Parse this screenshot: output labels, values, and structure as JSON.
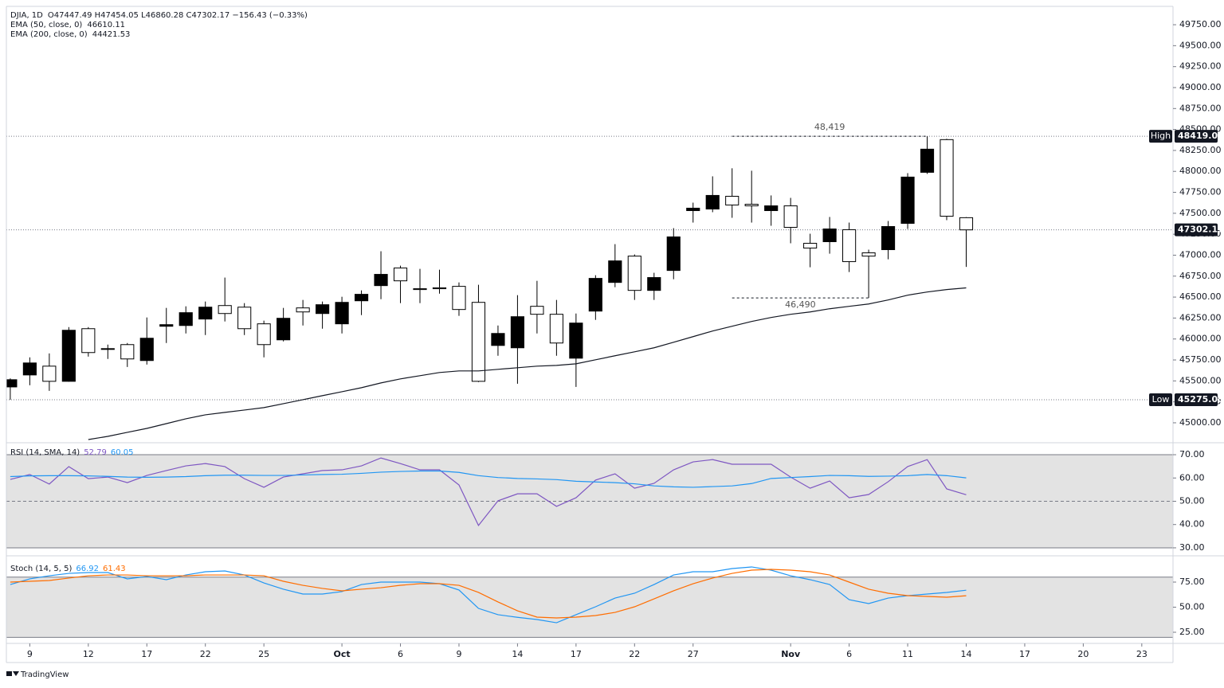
{
  "chart_data": [
    {
      "type": "candlestick",
      "title": "DJIA, 1D",
      "subtitle": "O47447.49  H47454.05  L46860.28  C47302.17  −156.43 (−0.33%)",
      "up_color": "#000000",
      "down_color": "#ffffff",
      "open": [
        45428,
        45571,
        45676,
        45495,
        46123,
        45876,
        45933,
        45743,
        46152,
        46161,
        46238,
        46399,
        46380,
        46181,
        45990,
        46371,
        46304,
        46181,
        46456,
        46637,
        46847,
        46600,
        46611,
        46628,
        46437,
        45923,
        45895,
        46390,
        46295,
        45771,
        46333,
        46675,
        46989,
        46580,
        46818,
        47532,
        47551,
        47703,
        47608,
        47532,
        47589,
        47142,
        47161,
        47304,
        47028,
        47066,
        47380,
        47989,
        48379,
        47447.49
      ],
      "high": [
        45530,
        45781,
        45828,
        46142,
        46142,
        45933,
        45952,
        46257,
        46371,
        46390,
        46447,
        46733,
        46428,
        46219,
        46371,
        46466,
        46447,
        46504,
        46580,
        47047,
        46875,
        46837,
        46827,
        46675,
        46647,
        46161,
        46523,
        46694,
        46466,
        46304,
        46761,
        47132,
        47009,
        46790,
        47323,
        47627,
        47941,
        48037,
        48008,
        47713,
        47684,
        47256,
        47456,
        47389,
        47066,
        47408,
        47979,
        48419.01,
        48389,
        47454.05
      ],
      "low": [
        45275.05,
        45448,
        45381,
        45490,
        45790,
        45762,
        45666,
        45695,
        45952,
        46066,
        46047,
        46209,
        46047,
        45781,
        45971,
        46161,
        46123,
        46066,
        46285,
        46475,
        46428,
        46428,
        46541,
        46276,
        45486,
        45800,
        45466,
        46066,
        45800,
        45428,
        46228,
        46618,
        46466,
        46466,
        46713,
        47389,
        47513,
        47446,
        47389,
        47351,
        47142,
        46856,
        47018,
        46799,
        46490,
        46951,
        47313,
        47970,
        47418,
        46860.28
      ],
      "close": [
        45514,
        45714,
        45495,
        46104,
        45838,
        45885,
        45762,
        46009,
        46171,
        46314,
        46380,
        46304,
        46123,
        45933,
        46247,
        46323,
        46409,
        46437,
        46533,
        46771,
        46694,
        46590,
        46600,
        46352,
        45495,
        46066,
        46266,
        46295,
        45952,
        46190,
        46723,
        46932,
        46580,
        46733,
        47218,
        47561,
        47713,
        47599,
        47589,
        47589,
        47332,
        47085,
        47313,
        46923,
        46989,
        47342,
        47932,
        48265,
        47465,
        47302.17
      ],
      "series": [
        {
          "name": "EMA (50, close, 0)",
          "color": "#131722",
          "values": [
            null,
            null,
            null,
            null,
            44800,
            44838,
            44886,
            44933,
            44990,
            45048,
            45095,
            45124,
            45152,
            45181,
            45228,
            45276,
            45324,
            45371,
            45419,
            45476,
            45524,
            45562,
            45600,
            45619,
            45619,
            45638,
            45657,
            45676,
            45685,
            45704,
            45752,
            45800,
            45847,
            45895,
            45961,
            46028,
            46095,
            46152,
            46209,
            46257,
            46295,
            46323,
            46361,
            46390,
            46418,
            46466,
            46523,
            46561,
            46590,
            46610.11
          ]
        }
      ],
      "hidden_series": [
        {
          "name": "EMA (200, close, 0)",
          "value_label": "44421.53"
        }
      ],
      "markers": [
        {
          "label": "High",
          "value": 48419.01
        },
        {
          "value": 47302.17
        },
        {
          "label": "Low",
          "value": 45275.05
        }
      ],
      "annotations": [
        {
          "label": "48,419",
          "value": 48419
        },
        {
          "label": "46,490",
          "value": 46490
        }
      ],
      "ylim": [
        44762,
        49969
      ],
      "yticks": [
        {
          "value": 45000,
          "label": "45000.00"
        },
        {
          "value": 45250,
          "label": "45250.00"
        },
        {
          "value": 45500,
          "label": "45500.00"
        },
        {
          "value": 45750,
          "label": "45750.00"
        },
        {
          "value": 46000,
          "label": "46000.00"
        },
        {
          "value": 46250,
          "label": "46250.00"
        },
        {
          "value": 46500,
          "label": "46500.00"
        },
        {
          "value": 46750,
          "label": "46750.00"
        },
        {
          "value": 47000,
          "label": "47000.00"
        },
        {
          "value": 47250,
          "label": "47250.00"
        },
        {
          "value": 47500,
          "label": "47500.00"
        },
        {
          "value": 47750,
          "label": "47750.00"
        },
        {
          "value": 48000,
          "label": "48000.00"
        },
        {
          "value": 48250,
          "label": "48250.00"
        },
        {
          "value": 48500,
          "label": "48500.00"
        },
        {
          "value": 48750,
          "label": "48750.00"
        },
        {
          "value": 49000,
          "label": "49000.00"
        },
        {
          "value": 49250,
          "label": "49250.00"
        },
        {
          "value": 49500,
          "label": "49500.00"
        },
        {
          "value": 49750,
          "label": "49750.00"
        }
      ],
      "xlim": [
        -0.2,
        59.6
      ],
      "xticks": [
        {
          "value": 1,
          "label": "9"
        },
        {
          "value": 4,
          "label": "12"
        },
        {
          "value": 7,
          "label": "17"
        },
        {
          "value": 10,
          "label": "22"
        },
        {
          "value": 13,
          "label": "25"
        },
        {
          "value": 17,
          "label": "Oct"
        },
        {
          "value": 20,
          "label": "6"
        },
        {
          "value": 23,
          "label": "9"
        },
        {
          "value": 26,
          "label": "14"
        },
        {
          "value": 29,
          "label": "17"
        },
        {
          "value": 32,
          "label": "22"
        },
        {
          "value": 35,
          "label": "27"
        },
        {
          "value": 40,
          "label": "Nov"
        },
        {
          "value": 43,
          "label": "6"
        },
        {
          "value": 46,
          "label": "11"
        },
        {
          "value": 49,
          "label": "14"
        },
        {
          "value": 52,
          "label": "17"
        },
        {
          "value": 55,
          "label": "20"
        },
        {
          "value": 58,
          "label": "23"
        }
      ],
      "footer": "TradingView"
    },
    {
      "type": "line",
      "title": "RSI (14, SMA, 14)",
      "series": [
        {
          "color": "#7e57c2",
          "values": [
            59.4,
            61.5,
            57.4,
            64.9,
            59.7,
            60.4,
            58.0,
            61.1,
            63.2,
            65.2,
            66.2,
            64.9,
            59.7,
            56.0,
            60.4,
            61.8,
            63.2,
            63.5,
            65.2,
            68.6,
            66.2,
            63.5,
            63.5,
            57.0,
            39.6,
            50.2,
            53.2,
            53.2,
            47.8,
            51.5,
            59.1,
            61.8,
            55.6,
            57.7,
            63.5,
            66.9,
            67.9,
            65.9,
            65.9,
            65.9,
            60.4,
            55.6,
            58.7,
            51.5,
            52.9,
            58.4,
            64.9,
            67.9,
            55.3,
            52.79
          ]
        },
        {
          "color": "#2196f3",
          "values": [
            60.6,
            60.9,
            61.0,
            61.0,
            60.9,
            60.7,
            60.4,
            60.3,
            60.4,
            60.6,
            61.0,
            61.2,
            61.2,
            61.1,
            61.1,
            61.3,
            61.5,
            61.6,
            62.0,
            62.5,
            62.8,
            63.0,
            63.0,
            62.4,
            61.0,
            60.2,
            59.8,
            59.6,
            59.3,
            58.6,
            58.3,
            58.0,
            57.5,
            56.6,
            56.2,
            56.0,
            56.3,
            56.6,
            57.6,
            59.8,
            60.2,
            60.6,
            61.1,
            61.0,
            60.7,
            60.8,
            61.0,
            61.5,
            61.0,
            60.05
          ]
        }
      ],
      "band": [
        30,
        70
      ],
      "midline": 50,
      "band_color": "#e3e3e3",
      "ylim": [
        29.3,
        74.8
      ],
      "yticks": [
        {
          "value": 30,
          "label": "30.00"
        },
        {
          "value": 40,
          "label": "40.00"
        },
        {
          "value": 50,
          "label": "50.00"
        },
        {
          "value": 60,
          "label": "60.00"
        },
        {
          "value": 70,
          "label": "70.00"
        }
      ]
    },
    {
      "type": "line",
      "title": "Stoch (14, 5, 5)",
      "series": [
        {
          "color": "#2196f3",
          "values": [
            72.6,
            78.2,
            81.3,
            83.7,
            84.5,
            84.5,
            78.2,
            80.6,
            77.4,
            82.1,
            85.3,
            86.1,
            82.1,
            74.2,
            67.9,
            63.1,
            63.1,
            65.5,
            72.6,
            75.0,
            75.0,
            75.0,
            73.4,
            67.1,
            48.8,
            42.5,
            39.9,
            37.7,
            34.5,
            42.5,
            50.4,
            59.1,
            63.9,
            72.6,
            82.1,
            85.3,
            85.3,
            88.5,
            90.1,
            86.9,
            81.3,
            77.4,
            72.6,
            57.5,
            53.6,
            59.1,
            61.5,
            63.1,
            64.7,
            66.92
          ]
        },
        {
          "color": "#ff6d00",
          "values": [
            75.0,
            75.8,
            76.6,
            79.0,
            81.3,
            82.1,
            82.1,
            81.3,
            81.3,
            81.3,
            82.1,
            82.1,
            82.1,
            81.3,
            75.8,
            71.8,
            68.7,
            66.3,
            67.9,
            69.4,
            71.8,
            73.4,
            73.4,
            71.8,
            64.7,
            55.2,
            46.4,
            40.1,
            39.3,
            40.1,
            41.7,
            44.8,
            50.4,
            58.3,
            66.3,
            73.4,
            79.0,
            83.7,
            86.9,
            87.7,
            86.9,
            85.3,
            82.1,
            75.0,
            67.9,
            63.9,
            61.5,
            60.7,
            59.9,
            61.43
          ]
        }
      ],
      "band": [
        20,
        80
      ],
      "band_color": "#e3e3e3",
      "ylim": [
        13.9,
        99.6
      ],
      "yticks": [
        {
          "value": 25,
          "label": "25.00"
        },
        {
          "value": 50,
          "label": "50.00"
        },
        {
          "value": 75,
          "label": "75.00"
        }
      ]
    }
  ]
}
